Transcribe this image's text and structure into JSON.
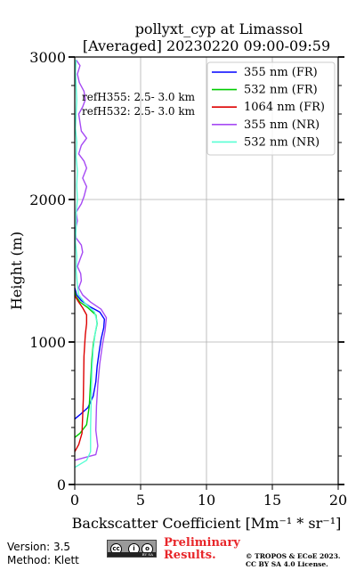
{
  "chart_data": {
    "type": "line",
    "title": "pollyxt_cyp at Limassol",
    "subtitle": "[Averaged] 20230220 09:00-09:59",
    "xlabel": "Backscatter Coefficient [Mm⁻¹ * sr⁻¹]",
    "ylabel": "Height (m)",
    "xlim": [
      0,
      20
    ],
    "ylim": [
      0,
      3000
    ],
    "xticks": [
      0,
      5,
      10,
      15,
      20
    ],
    "yticks": [
      0,
      1000,
      2000,
      3000
    ],
    "grid": true,
    "legend_position": "top-right",
    "annotations": [
      "refH355:  2.5- 3.0 km",
      "refH532:  2.5- 3.0 km"
    ],
    "series": [
      {
        "name": "355 nm (FR)",
        "color": "#0000ff",
        "points": [
          [
            0,
            460
          ],
          [
            0.4,
            490
          ],
          [
            1.0,
            540
          ],
          [
            1.4,
            620
          ],
          [
            1.6,
            720
          ],
          [
            1.7,
            830
          ],
          [
            1.85,
            930
          ],
          [
            2.0,
            1020
          ],
          [
            2.2,
            1100
          ],
          [
            2.25,
            1160
          ],
          [
            1.9,
            1210
          ],
          [
            1.1,
            1250
          ],
          [
            0.5,
            1290
          ],
          [
            0.15,
            1330
          ],
          [
            0,
            1380
          ]
        ]
      },
      {
        "name": "532 nm (FR)",
        "color": "#00cc00",
        "points": [
          [
            0,
            330
          ],
          [
            0.4,
            360
          ],
          [
            0.9,
            420
          ],
          [
            1.1,
            550
          ],
          [
            1.2,
            720
          ],
          [
            1.3,
            880
          ],
          [
            1.4,
            980
          ],
          [
            1.55,
            1060
          ],
          [
            1.7,
            1130
          ],
          [
            1.6,
            1190
          ],
          [
            1.0,
            1240
          ],
          [
            0.4,
            1280
          ],
          [
            0.1,
            1320
          ],
          [
            0,
            1360
          ]
        ]
      },
      {
        "name": "1064 nm (FR)",
        "color": "#dd0000",
        "points": [
          [
            0,
            230
          ],
          [
            0.3,
            280
          ],
          [
            0.55,
            360
          ],
          [
            0.65,
            600
          ],
          [
            0.7,
            900
          ],
          [
            0.8,
            1050
          ],
          [
            0.9,
            1130
          ],
          [
            0.9,
            1190
          ],
          [
            0.6,
            1240
          ],
          [
            0.3,
            1280
          ],
          [
            0.1,
            1310
          ],
          [
            0,
            1330
          ]
        ]
      },
      {
        "name": "355 nm (NR)",
        "color": "#a64af4",
        "points": [
          [
            0,
            170
          ],
          [
            0.8,
            190
          ],
          [
            1.6,
            210
          ],
          [
            1.75,
            270
          ],
          [
            1.6,
            380
          ],
          [
            1.65,
            550
          ],
          [
            1.75,
            700
          ],
          [
            1.9,
            850
          ],
          [
            2.1,
            980
          ],
          [
            2.3,
            1080
          ],
          [
            2.4,
            1170
          ],
          [
            2.0,
            1230
          ],
          [
            1.2,
            1280
          ],
          [
            0.6,
            1330
          ],
          [
            0.3,
            1380
          ],
          [
            0.5,
            1430
          ],
          [
            0.45,
            1480
          ],
          [
            0.2,
            1530
          ],
          [
            0.4,
            1580
          ],
          [
            0.6,
            1630
          ],
          [
            0.5,
            1680
          ],
          [
            0.1,
            1730
          ],
          [
            0.05,
            1790
          ],
          [
            0.2,
            1850
          ],
          [
            0.1,
            1910
          ],
          [
            0.5,
            1970
          ],
          [
            0.7,
            2020
          ],
          [
            0.9,
            2090
          ],
          [
            0.6,
            2150
          ],
          [
            0.9,
            2220
          ],
          [
            0.7,
            2270
          ],
          [
            0.3,
            2320
          ],
          [
            0.5,
            2380
          ],
          [
            0.9,
            2430
          ],
          [
            0.5,
            2480
          ],
          [
            0.4,
            2540
          ],
          [
            0.3,
            2600
          ],
          [
            0.6,
            2650
          ],
          [
            0.8,
            2700
          ],
          [
            0.7,
            2760
          ],
          [
            0.35,
            2820
          ],
          [
            0.2,
            2880
          ],
          [
            0.4,
            2940
          ],
          [
            0.1,
            2980
          ]
        ]
      },
      {
        "name": "532 nm (NR)",
        "color": "#59ffd5",
        "points": [
          [
            0,
            120
          ],
          [
            0.9,
            170
          ],
          [
            1.2,
            230
          ],
          [
            1.2,
            400
          ],
          [
            1.25,
            600
          ],
          [
            1.3,
            800
          ],
          [
            1.4,
            950
          ],
          [
            1.55,
            1060
          ],
          [
            1.7,
            1140
          ],
          [
            1.5,
            1210
          ],
          [
            0.8,
            1270
          ],
          [
            0.3,
            1330
          ],
          [
            0.2,
            1400
          ],
          [
            0.1,
            1500
          ],
          [
            0.15,
            1600
          ],
          [
            0.05,
            1700
          ],
          [
            0.1,
            1800
          ],
          [
            0.1,
            1900
          ],
          [
            0.2,
            2000
          ],
          [
            0.15,
            2100
          ],
          [
            0.2,
            2200
          ],
          [
            0.1,
            2300
          ],
          [
            0.15,
            2400
          ],
          [
            0.05,
            2500
          ],
          [
            0.1,
            2600
          ],
          [
            0.15,
            2700
          ],
          [
            0.1,
            2800
          ],
          [
            0.05,
            2900
          ],
          [
            0.1,
            2980
          ]
        ]
      }
    ]
  },
  "footer": {
    "version": "Version: 3.5",
    "method": "Method: Klett",
    "preliminary_line1": "Preliminary",
    "preliminary_line2": "Results.",
    "copyright_line1": "© TROPOS & ECoE 2023.",
    "copyright_line2": "CC BY SA 4.0 License.",
    "license_badge_text": "BY SA"
  }
}
